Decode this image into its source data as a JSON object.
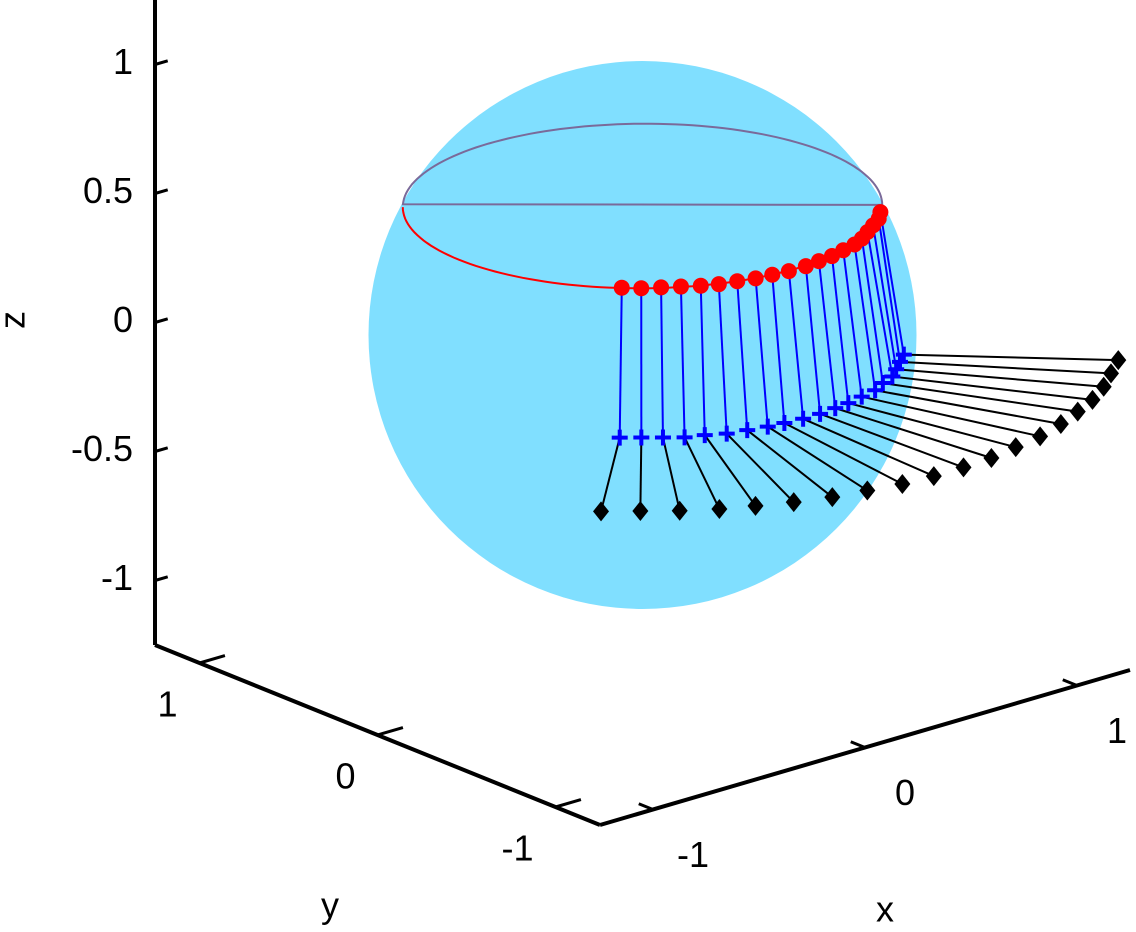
{
  "chart_data": {
    "type": "scatter3d",
    "xlabel": "x",
    "ylabel": "y",
    "zlabel": "z",
    "xlim": [
      -1.25,
      1.25
    ],
    "ylim": [
      -1.25,
      1.25
    ],
    "zlim": [
      -1.25,
      1.25
    ],
    "xticks": [
      -1,
      0,
      1
    ],
    "yticks": [
      -1,
      0,
      1
    ],
    "zticks": [
      -1,
      -0.5,
      0,
      0.5,
      1
    ],
    "sphere": {
      "radius": 1,
      "color": "#80dfff"
    },
    "ring": {
      "z": 0.5,
      "radius": 0.866,
      "color": "#ff0000",
      "back_color": "#7a6a9a"
    },
    "series": [
      {
        "marker": "o",
        "color": "#ff0000",
        "x": [
          -0.61,
          -0.56,
          -0.5,
          -0.44,
          -0.38,
          -0.32,
          -0.25,
          -0.18,
          -0.11,
          -0.04,
          0.04,
          0.11,
          0.18,
          0.25,
          0.32,
          0.38,
          0.44,
          0.5,
          0.56,
          0.61
        ],
        "y": [
          -0.61,
          -0.66,
          -0.7,
          -0.74,
          -0.78,
          -0.81,
          -0.83,
          -0.85,
          -0.86,
          -0.87,
          -0.87,
          -0.86,
          -0.85,
          -0.83,
          -0.81,
          -0.78,
          -0.74,
          -0.7,
          -0.66,
          -0.61
        ],
        "z": [
          0.5,
          0.5,
          0.5,
          0.5,
          0.5,
          0.5,
          0.5,
          0.5,
          0.5,
          0.5,
          0.5,
          0.5,
          0.5,
          0.5,
          0.5,
          0.5,
          0.5,
          0.5,
          0.5,
          0.5
        ]
      },
      {
        "marker": "+",
        "color": "#0000ff",
        "x": [
          -0.67,
          -0.61,
          -0.55,
          -0.49,
          -0.42,
          -0.35,
          -0.27,
          -0.19,
          -0.12,
          -0.04,
          0.04,
          0.12,
          0.19,
          0.27,
          0.35,
          0.42,
          0.49,
          0.55,
          0.61,
          0.67
        ],
        "y": [
          -0.67,
          -0.72,
          -0.77,
          -0.82,
          -0.85,
          -0.89,
          -0.91,
          -0.93,
          -0.94,
          -0.95,
          -0.95,
          -0.94,
          -0.93,
          -0.91,
          -0.89,
          -0.85,
          -0.82,
          -0.77,
          -0.72,
          -0.67
        ],
        "z": [
          -0.05,
          -0.05,
          -0.05,
          -0.05,
          -0.05,
          -0.05,
          -0.05,
          -0.05,
          -0.05,
          -0.05,
          -0.05,
          -0.05,
          -0.05,
          -0.05,
          -0.05,
          -0.05,
          -0.05,
          -0.05,
          -0.05,
          -0.05
        ]
      },
      {
        "marker": "d",
        "color": "#000000",
        "x": [
          -1.22,
          -1.11,
          -1.0,
          -0.88,
          -0.76,
          -0.63,
          -0.49,
          -0.35,
          -0.21,
          -0.07,
          0.07,
          0.21,
          0.35,
          0.49,
          0.63,
          0.76,
          0.88,
          1.0,
          1.11,
          1.22
        ],
        "y": [
          -1.22,
          -1.31,
          -1.4,
          -1.48,
          -1.54,
          -1.6,
          -1.65,
          -1.68,
          -1.71,
          -1.72,
          -1.72,
          -1.71,
          -1.68,
          -1.65,
          -1.6,
          -1.54,
          -1.48,
          -1.4,
          -1.31,
          -1.22
        ],
        "z": [
          -0.05,
          -0.05,
          -0.05,
          -0.05,
          -0.05,
          -0.05,
          -0.05,
          -0.05,
          -0.05,
          -0.05,
          -0.05,
          -0.05,
          -0.05,
          -0.05,
          -0.05,
          -0.05,
          -0.05,
          -0.05,
          -0.05,
          -0.05
        ]
      }
    ]
  }
}
